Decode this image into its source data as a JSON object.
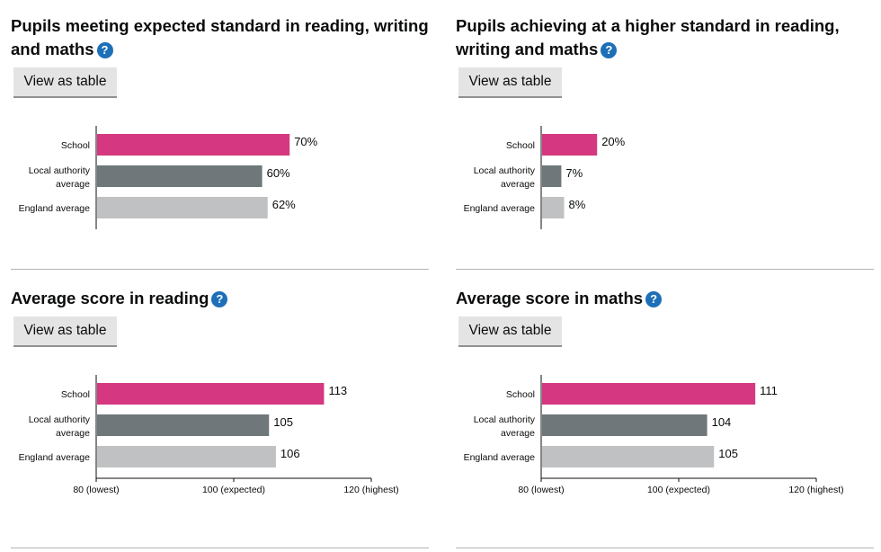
{
  "common": {
    "view_table_label": "View as table",
    "help_glyph": "?",
    "help_icon": "question-circle-icon"
  },
  "colors": {
    "school": "#d53880",
    "local": "#6f777b",
    "england": "#bfc1c3",
    "help": "#1d70b8"
  },
  "panels": [
    {
      "title": "Pupils meeting expected standard in reading, writing and maths",
      "chart_data": {
        "type": "bar",
        "orientation": "horizontal",
        "categories": [
          "School",
          "Local authority average",
          "England average"
        ],
        "values": [
          70,
          60,
          62
        ],
        "value_labels": [
          "70%",
          "60%",
          "62%"
        ],
        "xlim": [
          0,
          100
        ],
        "x_axis": false
      }
    },
    {
      "title": "Pupils achieving at a higher standard in reading, writing and maths",
      "chart_data": {
        "type": "bar",
        "orientation": "horizontal",
        "categories": [
          "School",
          "Local authority average",
          "England average"
        ],
        "values": [
          20,
          7,
          8
        ],
        "value_labels": [
          "20%",
          "7%",
          "8%"
        ],
        "xlim": [
          0,
          100
        ],
        "x_axis": false
      }
    },
    {
      "title": "Average score in reading",
      "chart_data": {
        "type": "bar",
        "orientation": "horizontal",
        "categories": [
          "School",
          "Local authority average",
          "England average"
        ],
        "values": [
          113,
          105,
          106
        ],
        "value_labels": [
          "113",
          "105",
          "106"
        ],
        "xlim": [
          80,
          120
        ],
        "x_axis": true,
        "ticks": [
          80,
          100,
          120
        ],
        "tick_labels": [
          "80 (lowest)",
          "100 (expected)",
          "120 (highest)"
        ]
      }
    },
    {
      "title": "Average score in maths",
      "chart_data": {
        "type": "bar",
        "orientation": "horizontal",
        "categories": [
          "School",
          "Local authority average",
          "England average"
        ],
        "values": [
          111,
          104,
          105
        ],
        "value_labels": [
          "111",
          "104",
          "105"
        ],
        "xlim": [
          80,
          120
        ],
        "x_axis": true,
        "ticks": [
          80,
          100,
          120
        ],
        "tick_labels": [
          "80 (lowest)",
          "100 (expected)",
          "120 (highest)"
        ]
      }
    }
  ]
}
